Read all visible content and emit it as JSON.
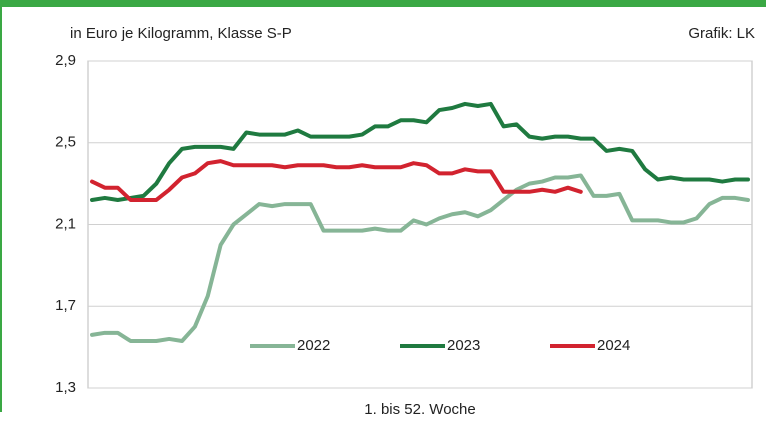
{
  "chart_data": {
    "type": "line",
    "subtitle": "in Euro je Kilogramm, Klasse S-P",
    "annotation": "Grafik: LK",
    "xlabel": "1. bis 52. Woche",
    "x": [
      1,
      2,
      3,
      4,
      5,
      6,
      7,
      8,
      9,
      10,
      11,
      12,
      13,
      14,
      15,
      16,
      17,
      18,
      19,
      20,
      21,
      22,
      23,
      24,
      25,
      26,
      27,
      28,
      29,
      30,
      31,
      32,
      33,
      34,
      35,
      36,
      37,
      38,
      39,
      40,
      41,
      42,
      43,
      44,
      45,
      46,
      47,
      48,
      49,
      50,
      51,
      52
    ],
    "xlim": [
      1,
      52
    ],
    "ylim": [
      1.3,
      2.9
    ],
    "yticks": [
      {
        "value": 1.3,
        "label": "1,3"
      },
      {
        "value": 1.7,
        "label": "1,7"
      },
      {
        "value": 2.1,
        "label": "2,1"
      },
      {
        "value": 2.5,
        "label": "2,5"
      },
      {
        "value": 2.9,
        "label": "2,9"
      }
    ],
    "grid": true,
    "legend": "bottom",
    "series": [
      {
        "name": "2022",
        "color": "#86b596",
        "values": [
          1.56,
          1.57,
          1.57,
          1.53,
          1.53,
          1.53,
          1.54,
          1.53,
          1.6,
          1.75,
          2.0,
          2.1,
          2.15,
          2.2,
          2.19,
          2.2,
          2.2,
          2.2,
          2.07,
          2.07,
          2.07,
          2.07,
          2.08,
          2.07,
          2.07,
          2.12,
          2.1,
          2.13,
          2.15,
          2.16,
          2.14,
          2.17,
          2.22,
          2.27,
          2.3,
          2.31,
          2.33,
          2.33,
          2.34,
          2.24,
          2.24,
          2.25,
          2.12,
          2.12,
          2.12,
          2.11,
          2.11,
          2.13,
          2.2,
          2.23,
          2.23,
          2.22
        ]
      },
      {
        "name": "2023",
        "color": "#1f7a40",
        "values": [
          2.22,
          2.23,
          2.22,
          2.23,
          2.24,
          2.3,
          2.4,
          2.47,
          2.48,
          2.48,
          2.48,
          2.47,
          2.55,
          2.54,
          2.54,
          2.54,
          2.56,
          2.53,
          2.53,
          2.53,
          2.53,
          2.54,
          2.58,
          2.58,
          2.61,
          2.61,
          2.6,
          2.66,
          2.67,
          2.69,
          2.68,
          2.69,
          2.58,
          2.59,
          2.53,
          2.52,
          2.53,
          2.53,
          2.52,
          2.52,
          2.46,
          2.47,
          2.46,
          2.37,
          2.32,
          2.33,
          2.32,
          2.32,
          2.32,
          2.31,
          2.32,
          2.32
        ]
      },
      {
        "name": "2024",
        "color": "#d2232f",
        "values": [
          2.31,
          2.28,
          2.28,
          2.22,
          2.22,
          2.22,
          2.27,
          2.33,
          2.35,
          2.4,
          2.41,
          2.39,
          2.39,
          2.39,
          2.39,
          2.38,
          2.39,
          2.39,
          2.39,
          2.38,
          2.38,
          2.39,
          2.38,
          2.38,
          2.38,
          2.4,
          2.39,
          2.35,
          2.35,
          2.37,
          2.36,
          2.36,
          2.26,
          2.26,
          2.26,
          2.27,
          2.26,
          2.28,
          2.26,
          null,
          null,
          null,
          null,
          null,
          null,
          null,
          null,
          null,
          null,
          null,
          null,
          null
        ]
      }
    ]
  }
}
